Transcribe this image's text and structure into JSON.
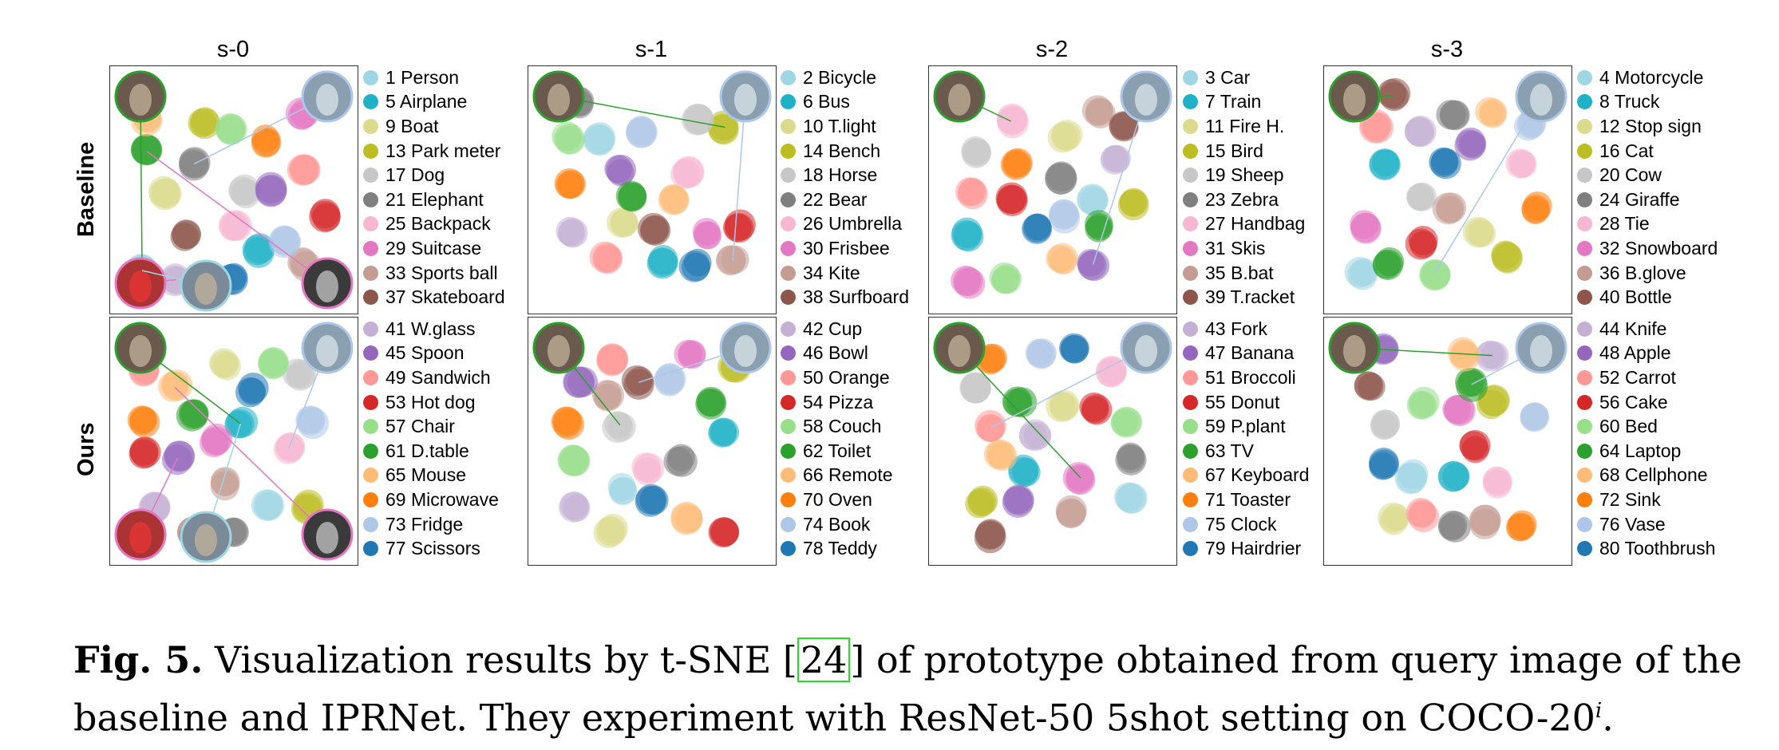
{
  "columns": [
    "s-0",
    "s-1",
    "s-2",
    "s-3"
  ],
  "rows": [
    "Baseline",
    "Ours"
  ],
  "legends": [
    [
      {
        "label": "1 Person",
        "color": "#9fd6e3"
      },
      {
        "label": "5 Airplane",
        "color": "#1fb1c7"
      },
      {
        "label": "9 Boat",
        "color": "#dbdb8d"
      },
      {
        "label": "13 Park meter",
        "color": "#bcbd22"
      },
      {
        "label": "17 Dog",
        "color": "#c7c7c7"
      },
      {
        "label": "21 Elephant",
        "color": "#7f7f7f"
      },
      {
        "label": "25 Backpack",
        "color": "#f7b6d2"
      },
      {
        "label": "29 Suitcase",
        "color": "#e377c2"
      },
      {
        "label": "33 Sports ball",
        "color": "#c49c94"
      },
      {
        "label": "37 Skateboard",
        "color": "#8c564b"
      },
      {
        "label": "41 W.glass",
        "color": "#c5b0d5"
      },
      {
        "label": "45 Spoon",
        "color": "#9467bd"
      },
      {
        "label": "49 Sandwich",
        "color": "#ff9896"
      },
      {
        "label": "53 Hot dog",
        "color": "#d62728"
      },
      {
        "label": "57 Chair",
        "color": "#98df8a"
      },
      {
        "label": "61 D.table",
        "color": "#2ca02c"
      },
      {
        "label": "65 Mouse",
        "color": "#ffbb78"
      },
      {
        "label": "69 Microwave",
        "color": "#ff7f0e"
      },
      {
        "label": "73 Fridge",
        "color": "#aec7e8"
      },
      {
        "label": "77 Scissors",
        "color": "#1f77b4"
      }
    ],
    [
      {
        "label": "2 Bicycle",
        "color": "#9fd6e3"
      },
      {
        "label": "6 Bus",
        "color": "#1fb1c7"
      },
      {
        "label": "10 T.light",
        "color": "#dbdb8d"
      },
      {
        "label": "14 Bench",
        "color": "#bcbd22"
      },
      {
        "label": "18 Horse",
        "color": "#c7c7c7"
      },
      {
        "label": "22 Bear",
        "color": "#7f7f7f"
      },
      {
        "label": "26 Umbrella",
        "color": "#f7b6d2"
      },
      {
        "label": "30 Frisbee",
        "color": "#e377c2"
      },
      {
        "label": "34 Kite",
        "color": "#c49c94"
      },
      {
        "label": "38 Surfboard",
        "color": "#8c564b"
      },
      {
        "label": "42 Cup",
        "color": "#c5b0d5"
      },
      {
        "label": "46 Bowl",
        "color": "#9467bd"
      },
      {
        "label": "50 Orange",
        "color": "#ff9896"
      },
      {
        "label": "54 Pizza",
        "color": "#d62728"
      },
      {
        "label": "58 Couch",
        "color": "#98df8a"
      },
      {
        "label": "62 Toilet",
        "color": "#2ca02c"
      },
      {
        "label": "66 Remote",
        "color": "#ffbb78"
      },
      {
        "label": "70 Oven",
        "color": "#ff7f0e"
      },
      {
        "label": "74 Book",
        "color": "#aec7e8"
      },
      {
        "label": "78 Teddy",
        "color": "#1f77b4"
      }
    ],
    [
      {
        "label": "3 Car",
        "color": "#9fd6e3"
      },
      {
        "label": "7 Train",
        "color": "#1fb1c7"
      },
      {
        "label": "11 Fire H.",
        "color": "#dbdb8d"
      },
      {
        "label": "15 Bird",
        "color": "#bcbd22"
      },
      {
        "label": "19 Sheep",
        "color": "#c7c7c7"
      },
      {
        "label": "23 Zebra",
        "color": "#7f7f7f"
      },
      {
        "label": "27 Handbag",
        "color": "#f7b6d2"
      },
      {
        "label": "31 Skis",
        "color": "#e377c2"
      },
      {
        "label": "35 B.bat",
        "color": "#c49c94"
      },
      {
        "label": "39 T.racket",
        "color": "#8c564b"
      },
      {
        "label": "43 Fork",
        "color": "#c5b0d5"
      },
      {
        "label": "47 Banana",
        "color": "#9467bd"
      },
      {
        "label": "51 Broccoli",
        "color": "#ff9896"
      },
      {
        "label": "55 Donut",
        "color": "#d62728"
      },
      {
        "label": "59 P.plant",
        "color": "#98df8a"
      },
      {
        "label": "63 TV",
        "color": "#2ca02c"
      },
      {
        "label": "67 Keyboard",
        "color": "#ffbb78"
      },
      {
        "label": "71 Toaster",
        "color": "#ff7f0e"
      },
      {
        "label": "75 Clock",
        "color": "#aec7e8"
      },
      {
        "label": "79 Hairdrier",
        "color": "#1f77b4"
      }
    ],
    [
      {
        "label": "4 Motorcycle",
        "color": "#9fd6e3"
      },
      {
        "label": "8 Truck",
        "color": "#1fb1c7"
      },
      {
        "label": "12 Stop sign",
        "color": "#dbdb8d"
      },
      {
        "label": "16 Cat",
        "color": "#bcbd22"
      },
      {
        "label": "20 Cow",
        "color": "#c7c7c7"
      },
      {
        "label": "24 Giraffe",
        "color": "#7f7f7f"
      },
      {
        "label": "28 Tie",
        "color": "#f7b6d2"
      },
      {
        "label": "32 Snowboard",
        "color": "#e377c2"
      },
      {
        "label": "36 B.glove",
        "color": "#c49c94"
      },
      {
        "label": "40 Bottle",
        "color": "#8c564b"
      },
      {
        "label": "44 Knife",
        "color": "#c5b0d5"
      },
      {
        "label": "48 Apple",
        "color": "#9467bd"
      },
      {
        "label": "52 Carrot",
        "color": "#ff9896"
      },
      {
        "label": "56 Cake",
        "color": "#d62728"
      },
      {
        "label": "60 Bed",
        "color": "#98df8a"
      },
      {
        "label": "64 Laptop",
        "color": "#2ca02c"
      },
      {
        "label": "68 Cellphone",
        "color": "#ffbb78"
      },
      {
        "label": "72 Sink",
        "color": "#ff7f0e"
      },
      {
        "label": "76 Vase",
        "color": "#aec7e8"
      },
      {
        "label": "80 Toothbrush",
        "color": "#1f77b4"
      }
    ]
  ],
  "caption": {
    "label": "Fig. 5.",
    "text_before_cite": "Visualization results by t-SNE",
    "cite": "24",
    "text_after_cite": "of prototype obtained from query image of the baseline and IPRNet. They experiment with ResNet-50 5shot setting on COCO-20",
    "superscript": "i",
    "text_end": "."
  }
}
